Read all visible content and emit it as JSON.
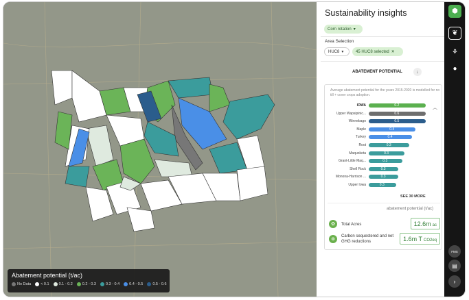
{
  "panel": {
    "title": "Sustainability insights",
    "crop_chip": "Corn rotation",
    "area_selection_label": "Area Selection",
    "huc_dropdown": "HUC8",
    "selected_chip": "45 HUC8 selected",
    "tab_label": "ABATEMENT POTENTIAL"
  },
  "card": {
    "description": "Average abatement potential for the years 2015-2020 is modelled for no till + cover crops adoption.",
    "see_more": "SEE 30 MORE",
    "unit_label": "abatement potential (t/ac)",
    "rows": [
      {
        "name": "IOWA",
        "value": "0.2",
        "fraction": 0.92,
        "color": "#5bb04f"
      },
      {
        "name": "Upper Wapsipinic...",
        "value": "0.6",
        "fraction": 0.92,
        "color": "#6e6e6e"
      },
      {
        "name": "Winnebago",
        "value": "0.5",
        "fraction": 0.92,
        "color": "#2b5d8c"
      },
      {
        "name": "Maple",
        "value": "0.4",
        "fraction": 0.76,
        "color": "#4a8fe7"
      },
      {
        "name": "Turkey",
        "value": "0.4",
        "fraction": 0.7,
        "color": "#4a8fe7"
      },
      {
        "name": "Root",
        "value": "0.3",
        "fraction": 0.66,
        "color": "#3b9c9c"
      },
      {
        "name": "Maquoketa",
        "value": "0.3",
        "fraction": 0.58,
        "color": "#3b9c9c"
      },
      {
        "name": "Grant-Little Maq...",
        "value": "0.3",
        "fraction": 0.54,
        "color": "#3b9c9c"
      },
      {
        "name": "Shell Rock",
        "value": "0.3",
        "fraction": 0.48,
        "color": "#3b9c9c"
      },
      {
        "name": "Monona-Harrison ...",
        "value": "0.3",
        "fraction": 0.48,
        "color": "#3b9c9c"
      },
      {
        "name": "Upper Iowa",
        "value": "0.3",
        "fraction": 0.44,
        "color": "#3b9c9c"
      }
    ],
    "stats": [
      {
        "label": "Total Acres",
        "value": "12.6m",
        "unit": "ac"
      },
      {
        "label": "Carbon sequestered and net GHG reductions",
        "value": "1.6m T",
        "unit": "CO2eq"
      }
    ]
  },
  "legend": {
    "title": "Abatement potential (t/ac)",
    "items": [
      {
        "label": "No Data",
        "color": "#777777"
      },
      {
        "label": "< 0.1",
        "color": "#ffffff"
      },
      {
        "label": "0.1 - 0.2",
        "color": "#dfeadf"
      },
      {
        "label": "0.2 - 0.3",
        "color": "#6bb458"
      },
      {
        "label": "0.3 - 0.4",
        "color": "#3b9c9c"
      },
      {
        "label": "0.4 - 0.5",
        "color": "#4a8fe7"
      },
      {
        "label": "0.5 - 0.6",
        "color": "#2b5d8c"
      }
    ]
  },
  "rail": {
    "fms_label": "FMS"
  },
  "colors": {
    "accent_green": "#4caf50",
    "chip_green": "#d9f0d3"
  }
}
